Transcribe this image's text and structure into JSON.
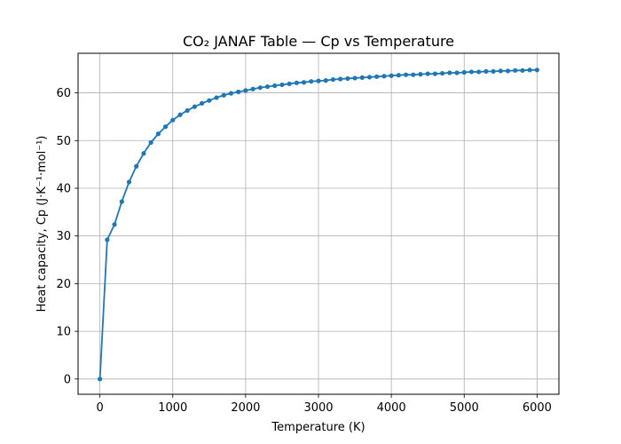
{
  "chart_data": {
    "type": "line",
    "title": "CO₂ JANAF Table — Cp vs Temperature",
    "xlabel": "Temperature (K)",
    "ylabel": "Heat capacity, Cp (J·K⁻¹·mol⁻¹)",
    "xlim": [
      -300,
      6300
    ],
    "ylim": [
      -3.2,
      68.3
    ],
    "xticks": [
      0,
      1000,
      2000,
      3000,
      4000,
      5000,
      6000
    ],
    "yticks": [
      0,
      10,
      20,
      30,
      40,
      50,
      60
    ],
    "grid": true,
    "series": [
      {
        "color": "#1f77b4",
        "marker": "circle",
        "x": [
          0,
          100,
          200,
          300,
          400,
          500,
          600,
          700,
          800,
          900,
          1000,
          1100,
          1200,
          1300,
          1400,
          1500,
          1600,
          1700,
          1800,
          1900,
          2000,
          2100,
          2200,
          2300,
          2400,
          2500,
          2600,
          2700,
          2800,
          2900,
          3000,
          3100,
          3200,
          3300,
          3400,
          3500,
          3600,
          3700,
          3800,
          3900,
          4000,
          4100,
          4200,
          4300,
          4400,
          4500,
          4600,
          4700,
          4800,
          4900,
          5000,
          5100,
          5200,
          5300,
          5400,
          5500,
          5600,
          5700,
          5800,
          5900,
          6000
        ],
        "y": [
          0,
          29.2,
          32.4,
          37.2,
          41.3,
          44.6,
          47.3,
          49.6,
          51.4,
          52.9,
          54.3,
          55.4,
          56.3,
          57.1,
          57.8,
          58.4,
          59.0,
          59.5,
          59.9,
          60.2,
          60.5,
          60.8,
          61.1,
          61.3,
          61.5,
          61.7,
          61.9,
          62.1,
          62.2,
          62.4,
          62.5,
          62.6,
          62.8,
          62.9,
          63.0,
          63.1,
          63.2,
          63.3,
          63.4,
          63.5,
          63.6,
          63.7,
          63.8,
          63.8,
          63.9,
          64.0,
          64.0,
          64.1,
          64.2,
          64.2,
          64.3,
          64.4,
          64.4,
          64.5,
          64.5,
          64.6,
          64.6,
          64.7,
          64.7,
          64.8,
          64.8
        ]
      }
    ]
  }
}
